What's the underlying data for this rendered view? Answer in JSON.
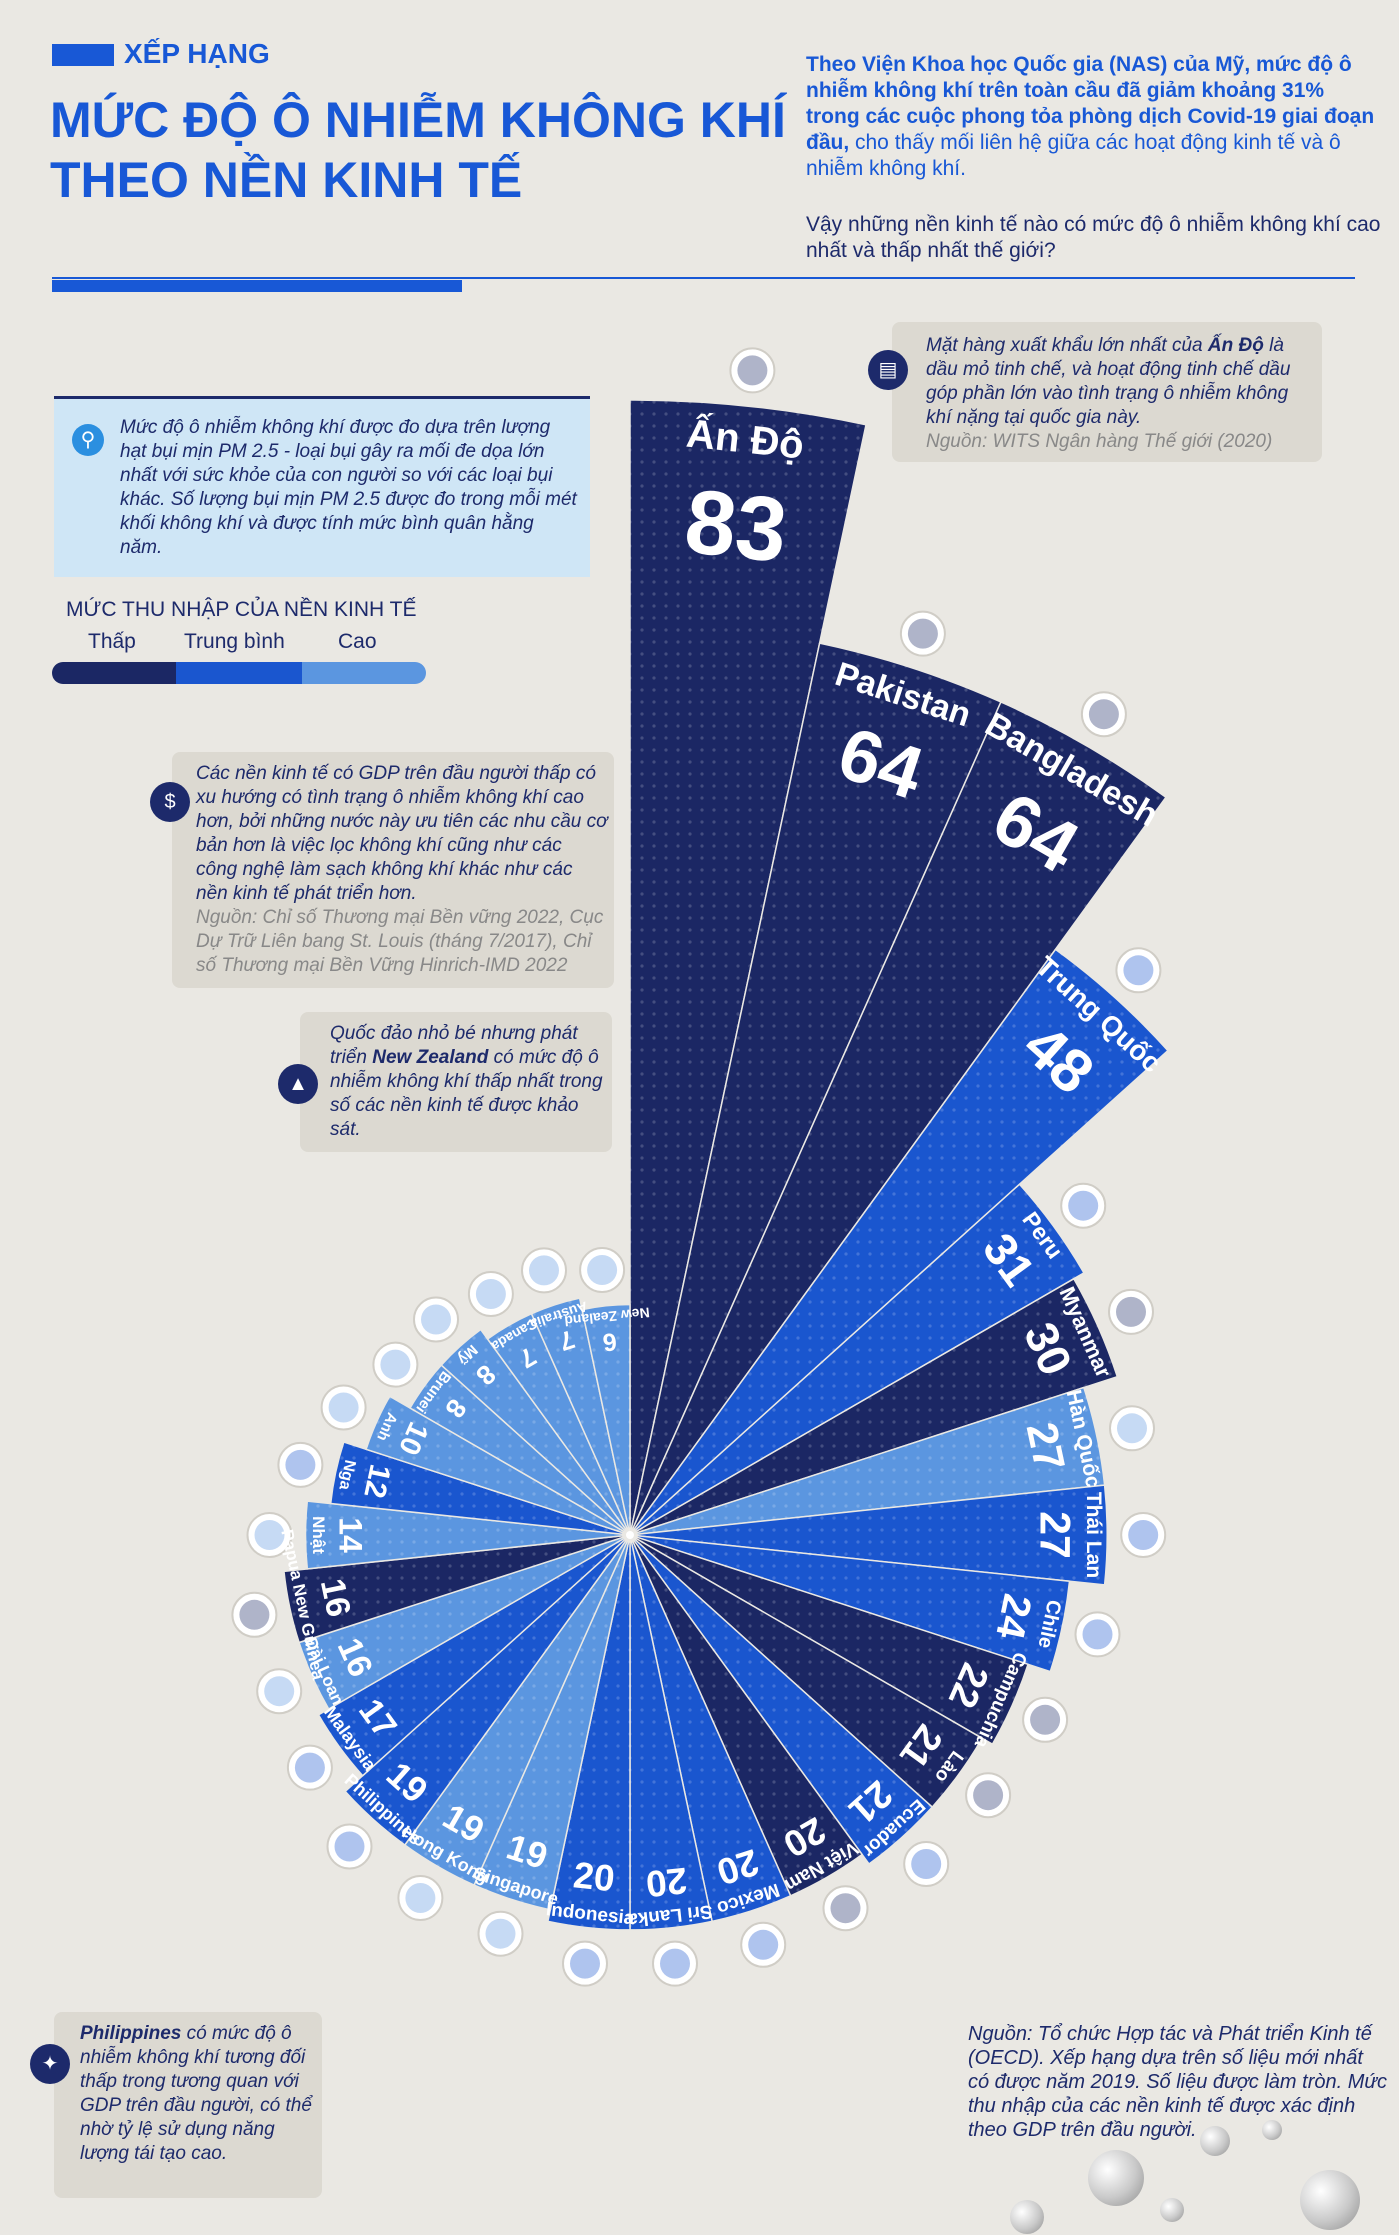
{
  "header": {
    "tag": "XẾP HẠNG",
    "title_line1": "MỨC ĐỘ Ô NHIỄM KHÔNG KHÍ",
    "title_line2": "THEO NỀN KINH TẾ",
    "intro_bold": "Theo Viện Khoa học Quốc gia (NAS) của Mỹ, mức độ ô nhiễm không khí trên toàn cầu đã giảm khoảng 31% trong các cuộc phong tỏa phòng dịch Covid-19 giai đoạn đầu,",
    "intro_rest": " cho thấy mối liên hệ giữa các hoạt động kinh tế và ô nhiễm không khí.",
    "intro2": "Vậy những nền kinh tế nào có mức độ ô nhiễm không khí cao nhất và thấp nhất thế giới?"
  },
  "info_box": {
    "icon": "magnifier-icon",
    "text": "Mức độ ô nhiễm không khí được đo dựa trên lượng hạt bụi mịn PM 2.5 - loại bụi gây ra mối đe dọa lớn nhất với sức khỏe của con người so với các loại bụi khác. Số lượng bụi mịn PM 2.5 được đo trong mỗi mét khối không khí và được tính mức bình quân hằng năm."
  },
  "legend": {
    "title": "MỨC THU NHẬP CỦA NỀN KINH TẾ",
    "low": "Thấp",
    "mid": "Trung bình",
    "high": "Cao",
    "colors": {
      "low": "#1b2764",
      "mid": "#1a56cf",
      "high": "#5b96e0"
    }
  },
  "notes": {
    "india": {
      "pre": "Mặt hàng xuất khẩu lớn nhất của ",
      "bold": "Ấn Độ",
      "post": " là dầu mỏ tinh chế, và hoạt động tinh chế dầu góp phần lớn vào tình trạng ô nhiễm không khí nặng tại quốc gia này.",
      "source": "Nguồn: WITS Ngân hàng Thế giới (2020)",
      "icon": "oil-barrel-icon"
    },
    "gdp": {
      "text": "Các nền kinh tế có GDP trên đầu người thấp có xu hướng có tình trạng ô nhiễm không khí cao hơn, bởi những nước này ưu tiên các nhu cầu cơ bản hơn là việc lọc không khí cũng như các công nghệ làm sạch không khí khác như các nền kinh tế phát triển hơn.",
      "source": "Nguồn: Chỉ số Thương mại Bền vững 2022, Cục Dự Trữ Liên bang St. Louis (tháng 7/2017), Chỉ số Thương mại Bền Vững Hinrich-IMD 2022",
      "icon": "globe-dollar-icon"
    },
    "nz": {
      "pre": "Quốc đảo nhỏ bé nhưng phát triển ",
      "bold": "New Zealand",
      "post": " có mức độ ô nhiễm không khí thấp nhất trong số các nền kinh tế được khảo sát.",
      "icon": "tree-icon"
    },
    "ph": {
      "bold": "Philippines",
      "post": " có mức độ ô nhiễm không khí tương đối thấp trong tương quan với GDP trên đầu người, có thể nhờ tỷ lệ sử dụng năng lượng tái tạo cao.",
      "icon": "renewable-icon"
    }
  },
  "source_note": "Nguồn: Tổ chức Hợp tác và Phát triển Kinh tế (OECD). Xếp hạng dựa trên số liệu mới nhất có được năm 2019. Số liệu được làm tròn. Mức thu nhập của các nền kinh tế được xác định theo GDP trên đầu người.",
  "chart_data": {
    "type": "bar",
    "layout": "radial",
    "categories": [
      "Ấn Độ",
      "Pakistan",
      "Bangladesh",
      "Trung Quốc",
      "Peru",
      "Myanmar",
      "Hàn Quốc",
      "Thái Lan",
      "Chile",
      "Campuchia",
      "Lào",
      "Ecuador",
      "Việt Nam",
      "Mexico",
      "Sri Lanka",
      "Indonesia",
      "Singapore",
      "Hong Kong",
      "Philippines",
      "Malaysia",
      "Đài Loan",
      "Papua New Guinea",
      "Nhật",
      "Nga",
      "Anh",
      "Brunei",
      "Mỹ",
      "Canada",
      "Australia",
      "New Zealand"
    ],
    "values": [
      83,
      64,
      64,
      48,
      31,
      30,
      27,
      27,
      24,
      22,
      21,
      21,
      20,
      20,
      20,
      20,
      19,
      19,
      19,
      17,
      16,
      16,
      14,
      12,
      10,
      8,
      8,
      7,
      7,
      6
    ],
    "income": [
      "low",
      "low",
      "low",
      "mid",
      "mid",
      "low",
      "high",
      "mid",
      "mid",
      "low",
      "low",
      "mid",
      "low",
      "mid",
      "mid",
      "mid",
      "high",
      "high",
      "mid",
      "mid",
      "high",
      "low",
      "high",
      "mid",
      "high",
      "high",
      "high",
      "high",
      "high",
      "high"
    ],
    "income_colors": {
      "low": "#1b2764",
      "mid": "#1a56cf",
      "high": "#5b96e0"
    },
    "flags": [
      "india-flag-icon",
      "pakistan-flag-icon",
      "bangladesh-flag-icon",
      "china-flag-icon",
      "peru-flag-icon",
      "myanmar-flag-icon",
      "korea-flag-icon",
      "thailand-flag-icon",
      "chile-flag-icon",
      "cambodia-flag-icon",
      "laos-flag-icon",
      "ecuador-flag-icon",
      "vietnam-flag-icon",
      "mexico-flag-icon",
      "srilanka-flag-icon",
      "indonesia-flag-icon",
      "singapore-flag-icon",
      "hongkong-flag-icon",
      "philippines-flag-icon",
      "malaysia-flag-icon",
      "taiwan-flag-icon",
      "png-flag-icon",
      "japan-flag-icon",
      "russia-flag-icon",
      "uk-flag-icon",
      "brunei-flag-icon",
      "usa-flag-icon",
      "canada-flag-icon",
      "australia-flag-icon",
      "newzealand-flag-icon"
    ]
  }
}
